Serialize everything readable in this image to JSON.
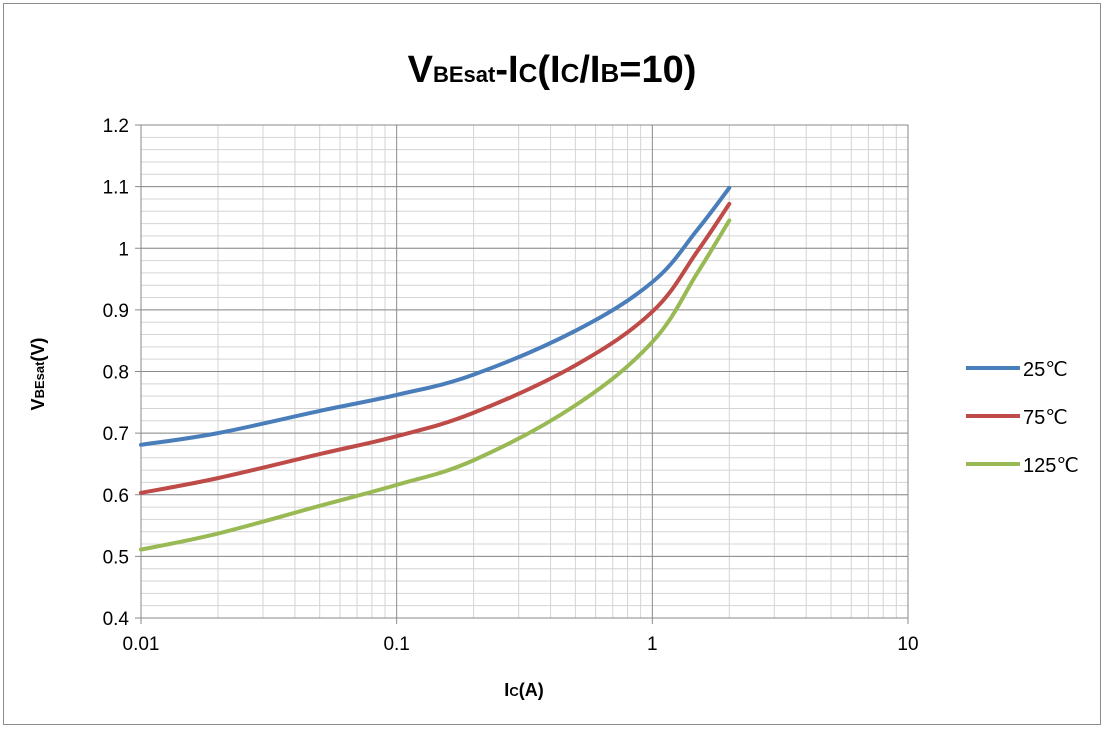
{
  "chart_data": {
    "type": "line",
    "title": {
      "main": "V",
      "sub1": "BEsat",
      "mid": "-I",
      "sub2": "C",
      "mid2": "(I",
      "sub3": "C",
      "mid3": "/I",
      "sub4": "B",
      "end": "=10)"
    },
    "xlabel": {
      "main": "I",
      "sub": "C",
      "end": "(A)"
    },
    "ylabel": {
      "main": "V",
      "sub": "BEsat",
      "end": "(V)"
    },
    "x_scale": "log",
    "xlim": [
      0.01,
      10
    ],
    "ylim": [
      0.4,
      1.2
    ],
    "x_ticks": [
      "0.01",
      "0.1",
      "1",
      "10"
    ],
    "y_ticks": [
      "0.4",
      "0.5",
      "0.6",
      "0.7",
      "0.8",
      "0.9",
      "1",
      "1.1",
      "1.2"
    ],
    "grid": true,
    "legend_position": "right",
    "series": [
      {
        "name": "25℃",
        "color": "#4a7ebb",
        "x": [
          0.01,
          0.02,
          0.05,
          0.1,
          0.2,
          0.5,
          1,
          1.5,
          2
        ],
        "y": [
          0.681,
          0.7,
          0.736,
          0.762,
          0.795,
          0.866,
          0.945,
          1.03,
          1.098
        ]
      },
      {
        "name": "75℃",
        "color": "#be4b48",
        "x": [
          0.01,
          0.02,
          0.05,
          0.1,
          0.2,
          0.5,
          1,
          1.5,
          2
        ],
        "y": [
          0.603,
          0.627,
          0.666,
          0.695,
          0.733,
          0.81,
          0.897,
          0.995,
          1.072
        ]
      },
      {
        "name": "125℃",
        "color": "#98b954",
        "x": [
          0.01,
          0.02,
          0.05,
          0.1,
          0.2,
          0.5,
          1,
          1.5,
          2
        ],
        "y": [
          0.511,
          0.537,
          0.582,
          0.616,
          0.656,
          0.745,
          0.848,
          0.96,
          1.045
        ]
      }
    ]
  }
}
